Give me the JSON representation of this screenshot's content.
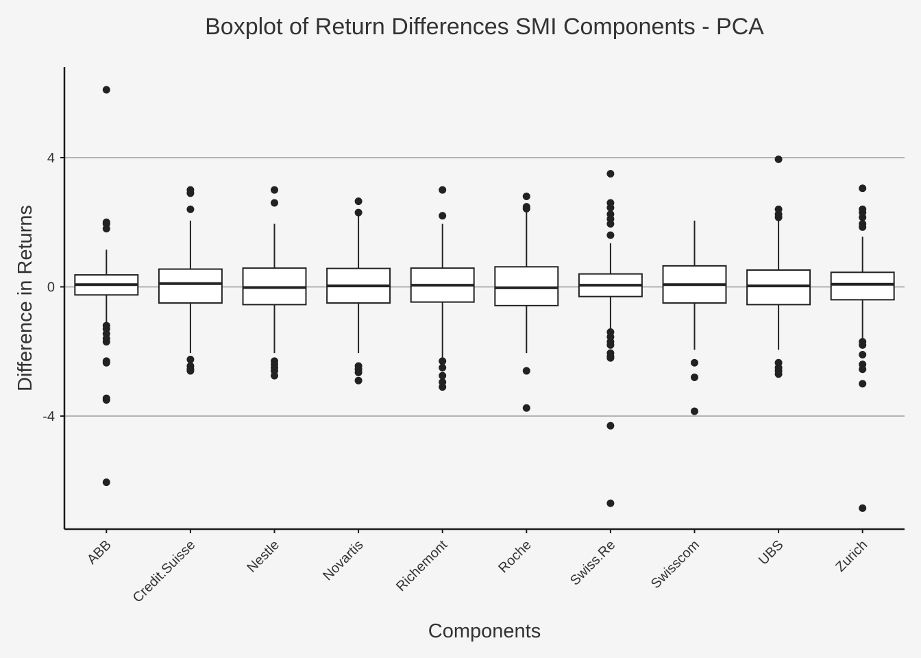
{
  "chart_data": {
    "type": "boxplot",
    "title": "Boxplot of Return Differences SMI Components - PCA",
    "xlabel": "Components",
    "ylabel": "Difference in Returns",
    "ylim": [
      -7.5,
      6.8
    ],
    "yticks": [
      -4,
      0,
      4
    ],
    "grid": "horizontal major lines only",
    "legend": "none",
    "categories": [
      "ABB",
      "Credit.Suisse",
      "Nestle",
      "Novartis",
      "Richemont",
      "Roche",
      "Swiss.Re",
      "Swisscom",
      "UBS",
      "Zurich"
    ],
    "boxes": [
      {
        "category": "ABB",
        "whisker_low": -1.15,
        "q1": -0.25,
        "median": 0.07,
        "q3": 0.37,
        "whisker_high": 1.15,
        "outliers": [
          6.1,
          2.0,
          1.95,
          1.8,
          -1.2,
          -1.3,
          -1.45,
          -1.6,
          -1.7,
          -2.3,
          -2.35,
          -3.45,
          -3.5,
          -6.05
        ]
      },
      {
        "category": "Credit.Suisse",
        "whisker_low": -2.05,
        "q1": -0.5,
        "median": 0.1,
        "q3": 0.55,
        "whisker_high": 2.05,
        "outliers": [
          3.0,
          2.9,
          2.4,
          -2.25,
          -2.45,
          -2.55,
          -2.6
        ]
      },
      {
        "category": "Nestle",
        "whisker_low": -2.05,
        "q1": -0.55,
        "median": -0.02,
        "q3": 0.58,
        "whisker_high": 1.95,
        "outliers": [
          3.0,
          2.6,
          -2.3,
          -2.4,
          -2.5,
          -2.6,
          -2.75
        ]
      },
      {
        "category": "Novartis",
        "whisker_low": -2.05,
        "q1": -0.5,
        "median": 0.03,
        "q3": 0.57,
        "whisker_high": 2.2,
        "outliers": [
          2.65,
          2.3,
          -2.45,
          -2.55,
          -2.65,
          -2.9
        ]
      },
      {
        "category": "Richemont",
        "whisker_low": -2.2,
        "q1": -0.47,
        "median": 0.05,
        "q3": 0.58,
        "whisker_high": 1.95,
        "outliers": [
          3.0,
          2.2,
          -2.3,
          -2.5,
          -2.75,
          -2.95,
          -3.1
        ]
      },
      {
        "category": "Roche",
        "whisker_low": -2.05,
        "q1": -0.58,
        "median": -0.03,
        "q3": 0.62,
        "whisker_high": 2.35,
        "outliers": [
          2.8,
          2.48,
          2.42,
          -2.6,
          -3.75
        ]
      },
      {
        "category": "Swiss.Re",
        "whisker_low": -1.4,
        "q1": -0.3,
        "median": 0.05,
        "q3": 0.4,
        "whisker_high": 1.35,
        "outliers": [
          3.5,
          2.6,
          2.45,
          2.25,
          2.1,
          1.95,
          1.6,
          -1.4,
          -1.55,
          -1.7,
          -1.8,
          -2.05,
          -2.15,
          -2.2,
          -4.3,
          -6.7
        ]
      },
      {
        "category": "Swisscom",
        "whisker_low": -1.95,
        "q1": -0.5,
        "median": 0.07,
        "q3": 0.65,
        "whisker_high": 2.05,
        "outliers": [
          -2.35,
          -2.8,
          -3.85
        ]
      },
      {
        "category": "UBS",
        "whisker_low": -1.95,
        "q1": -0.55,
        "median": 0.03,
        "q3": 0.52,
        "whisker_high": 2.15,
        "outliers": [
          3.95,
          2.4,
          2.25,
          2.15,
          -2.35,
          -2.5,
          -2.6,
          -2.7
        ]
      },
      {
        "category": "Zurich",
        "whisker_low": -1.7,
        "q1": -0.4,
        "median": 0.08,
        "q3": 0.45,
        "whisker_high": 1.55,
        "outliers": [
          3.05,
          2.4,
          2.3,
          2.15,
          1.95,
          1.85,
          -1.7,
          -1.8,
          -2.1,
          -2.4,
          -2.55,
          -3.0,
          -6.85
        ]
      }
    ]
  }
}
